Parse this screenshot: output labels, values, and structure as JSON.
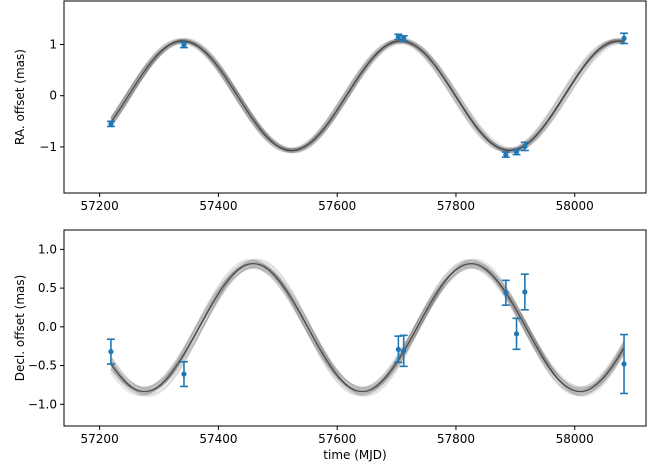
{
  "colors": {
    "points": "#1f77b4",
    "model": "#333333",
    "axes": "#000000",
    "background": "#ffffff"
  },
  "chart_data": [
    {
      "type": "scatter",
      "panel": "top",
      "ylabel": "RA. offset (mas)",
      "xlabel": "",
      "xlim": [
        57140,
        58120
      ],
      "ylim": [
        -1.9,
        1.85
      ],
      "xticks": [
        57200,
        57400,
        57600,
        57800,
        58000
      ],
      "yticks": [
        -1,
        0,
        1
      ],
      "grid": false,
      "legend": "none",
      "points": [
        {
          "x": 57219,
          "y": -0.55,
          "yerr": 0.05
        },
        {
          "x": 57342,
          "y": 0.99,
          "yerr": 0.05
        },
        {
          "x": 57703,
          "y": 1.15,
          "yerr": 0.05
        },
        {
          "x": 57712,
          "y": 1.12,
          "yerr": 0.05
        },
        {
          "x": 57884,
          "y": -1.15,
          "yerr": 0.05
        },
        {
          "x": 57902,
          "y": -1.1,
          "yerr": 0.05
        },
        {
          "x": 57916,
          "y": -0.99,
          "yerr": 0.08
        },
        {
          "x": 58083,
          "y": 1.12,
          "yerr": 0.1
        }
      ],
      "model_band": "posterior sinusoid draws",
      "model": {
        "amplitude": 1.07,
        "period": 367,
        "peak": 57340,
        "offset": 0.0
      }
    },
    {
      "type": "scatter",
      "panel": "bottom",
      "ylabel": "Decl. offset (mas)",
      "xlabel": "time (MJD)",
      "xlim": [
        57140,
        58120
      ],
      "ylim": [
        -1.28,
        1.25
      ],
      "xticks": [
        57200,
        57400,
        57600,
        57800,
        58000
      ],
      "yticks": [
        -1.0,
        -0.5,
        0.0,
        0.5,
        1.0
      ],
      "grid": false,
      "legend": "none",
      "points": [
        {
          "x": 57219,
          "y": -0.32,
          "yerr": 0.16
        },
        {
          "x": 57342,
          "y": -0.61,
          "yerr": 0.16
        },
        {
          "x": 57703,
          "y": -0.29,
          "yerr": 0.17
        },
        {
          "x": 57712,
          "y": -0.31,
          "yerr": 0.2
        },
        {
          "x": 57884,
          "y": 0.44,
          "yerr": 0.16
        },
        {
          "x": 57902,
          "y": -0.09,
          "yerr": 0.2
        },
        {
          "x": 57916,
          "y": 0.45,
          "yerr": 0.23
        },
        {
          "x": 58083,
          "y": -0.48,
          "yerr": 0.38
        }
      ],
      "model_band": "posterior sinusoid draws",
      "model": {
        "amplitude": 0.825,
        "period": 367,
        "peak": 57826,
        "offset": -0.01
      }
    }
  ]
}
